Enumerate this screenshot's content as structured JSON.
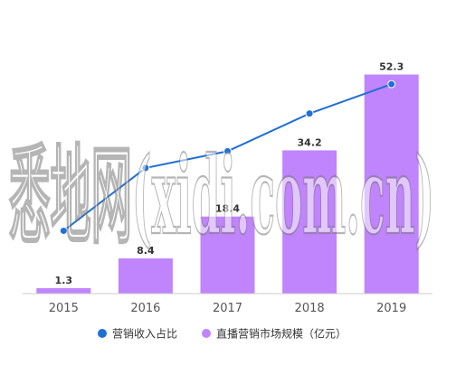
{
  "watermark": "悉地网(xidi.com.cn)",
  "chart_data": {
    "type": "bar",
    "title": "",
    "xlabel": "",
    "ylabel": "",
    "categories": [
      "2015",
      "2016",
      "2017",
      "2018",
      "2019"
    ],
    "series": [
      {
        "name": "直播营销市场规模（亿元）",
        "type": "bar",
        "color": "#c084fc",
        "values": [
          1.3,
          8.4,
          18.4,
          34.2,
          52.3
        ],
        "labels": [
          "1.3",
          "8.4",
          "18.4",
          "34.2",
          "52.3"
        ]
      },
      {
        "name": "营销收入占比",
        "type": "line",
        "color": "#1f6fd6",
        "values": [
          15,
          30,
          34,
          43,
          50
        ]
      }
    ],
    "ylim": [
      0,
      55
    ],
    "line_ylim": [
      0,
      55
    ],
    "grid": false,
    "legend": "bottom-center"
  }
}
